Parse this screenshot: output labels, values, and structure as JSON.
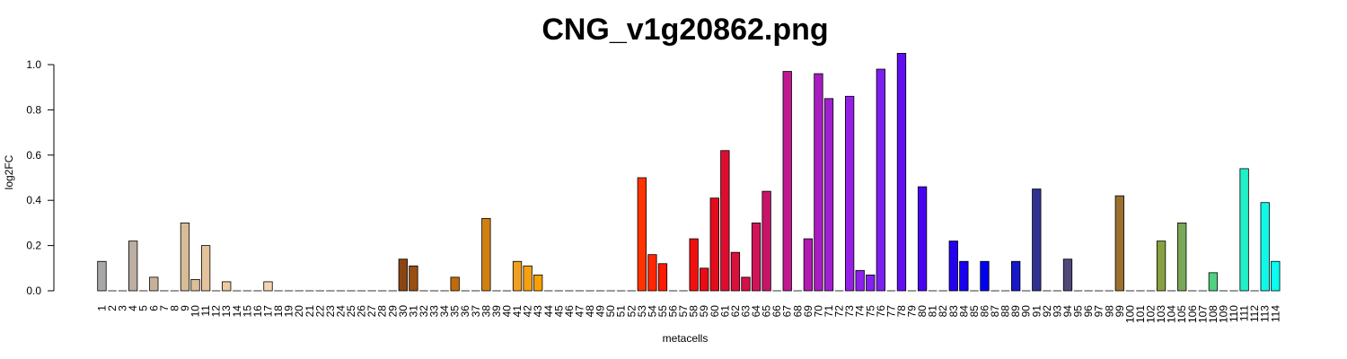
{
  "chart_data": {
    "type": "bar",
    "title": "CNG_v1g20862.png",
    "xlabel": "metacells",
    "ylabel": "log2FC",
    "ylim": [
      0,
      1.05
    ],
    "yticks": [
      "0.0",
      "0.2",
      "0.4",
      "0.6",
      "0.8",
      "1.0"
    ],
    "categories": [
      "1",
      "2",
      "3",
      "4",
      "5",
      "6",
      "7",
      "8",
      "9",
      "10",
      "11",
      "12",
      "13",
      "14",
      "15",
      "16",
      "17",
      "18",
      "19",
      "20",
      "21",
      "22",
      "23",
      "24",
      "25",
      "26",
      "27",
      "28",
      "29",
      "30",
      "31",
      "32",
      "33",
      "34",
      "35",
      "36",
      "37",
      "38",
      "39",
      "40",
      "41",
      "42",
      "43",
      "44",
      "45",
      "46",
      "47",
      "48",
      "49",
      "50",
      "51",
      "52",
      "53",
      "54",
      "55",
      "56",
      "57",
      "58",
      "59",
      "60",
      "61",
      "62",
      "63",
      "64",
      "65",
      "66",
      "67",
      "68",
      "69",
      "70",
      "71",
      "72",
      "73",
      "74",
      "75",
      "76",
      "77",
      "78",
      "79",
      "80",
      "81",
      "82",
      "83",
      "84",
      "85",
      "86",
      "87",
      "88",
      "89",
      "90",
      "91",
      "92",
      "93",
      "94",
      "95",
      "96",
      "97",
      "98",
      "99",
      "100",
      "101",
      "102",
      "103",
      "104",
      "105",
      "106",
      "107",
      "108",
      "109",
      "110",
      "111",
      "112",
      "113",
      "114"
    ],
    "values": [
      0.13,
      0,
      0,
      0.22,
      0,
      0.06,
      0,
      0,
      0.3,
      0.05,
      0.2,
      0,
      0.04,
      0,
      0,
      0,
      0.04,
      0,
      0,
      0,
      0,
      0,
      0,
      0,
      0,
      0,
      0,
      0,
      0,
      0.14,
      0.11,
      0,
      0,
      0,
      0.06,
      0,
      0,
      0.32,
      0,
      0,
      0.13,
      0.11,
      0.07,
      0,
      0,
      0,
      0,
      0,
      0,
      0,
      0,
      0,
      0.5,
      0.16,
      0.12,
      0,
      0,
      0.23,
      0.1,
      0.41,
      0.62,
      0.17,
      0.06,
      0.3,
      0.44,
      0,
      0.97,
      0,
      0.23,
      0.96,
      0.85,
      0,
      0.86,
      0.09,
      0.07,
      0.98,
      0,
      1.05,
      0,
      0.46,
      0,
      0,
      0.22,
      0.13,
      0,
      0.13,
      0,
      0,
      0.13,
      0,
      0.45,
      0,
      0,
      0.14,
      0,
      0,
      0,
      0,
      0.42,
      0,
      0,
      0,
      0.22,
      0,
      0.3,
      0,
      0,
      0.08,
      0,
      0,
      0.54,
      0,
      0.39,
      0.13
    ],
    "colors": [
      "#a8a8a8",
      "#b0a9a4",
      "#b5aba3",
      "#bbaea2",
      "#c1b09c",
      "#c8b19a",
      "#ccb498",
      "#d2b897",
      "#d6bc97",
      "#dcbf98",
      "#e2c39b",
      "#e6c7a0",
      "#ebcba4",
      "#eecea8",
      "#f0d1ab",
      "#f1d3ae",
      "#f3d5b1",
      "#f0cba2",
      "#e4b98a",
      "#d6a673",
      "#c8955e",
      "#ba844b",
      "#ac743b",
      "#9e652c",
      "#925820",
      "#874d17",
      "#7e4512",
      "#783f0f",
      "#743b0d",
      "#8b4513",
      "#9a4e12",
      "#a45511",
      "#ae5c10",
      "#b6630e",
      "#bf6b0c",
      "#c5720b",
      "#cb790a",
      "#d08010",
      "#d58710",
      "#da8f0f",
      "#f0a020",
      "#f5a010",
      "#f8a000",
      "#fb9e00",
      "#fd9a00",
      "#fe9400",
      "#ff8c00",
      "#ff8000",
      "#ff7200",
      "#ff6400",
      "#ff5400",
      "#ff4400",
      "#ff3300",
      "#ff2600",
      "#ff1a00",
      "#f81408",
      "#f0140c",
      "#f01010",
      "#e80c14",
      "#e40c1c",
      "#e00c30",
      "#d8103c",
      "#d41048",
      "#d01458",
      "#c81468",
      "#c41478",
      "#c01890",
      "#b818a0",
      "#b01cb0",
      "#a81cc0",
      "#a020d0",
      "#9a20dc",
      "#9420e4",
      "#8c20ec",
      "#8420f0",
      "#7c20f0",
      "#7020f0",
      "#6010f0",
      "#5008f0",
      "#4804f0",
      "#3c00f0",
      "#3000f0",
      "#2400f0",
      "#1800f0",
      "#0c00f0",
      "#0000f0",
      "#0808e0",
      "#1010d0",
      "#1818c8",
      "#2020c0",
      "#303090",
      "#3a3a88",
      "#444080",
      "#504878",
      "#5a5070",
      "#605068",
      "#685868",
      "#806040",
      "#9a7030",
      "#b88020",
      "#a08a30",
      "#909040",
      "#88a040",
      "#80a050",
      "#78a858",
      "#70b060",
      "#60c070",
      "#50d080",
      "#40e090",
      "#30e8b0",
      "#20f0c8",
      "#18f4d8",
      "#10f8e8",
      "#08fcf0"
    ]
  }
}
